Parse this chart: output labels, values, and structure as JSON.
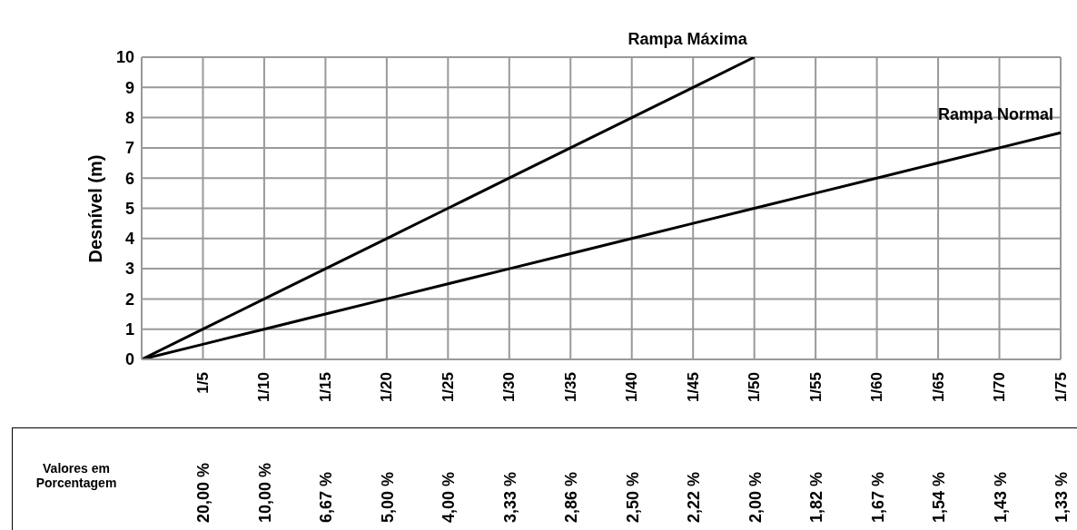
{
  "chart_data": {
    "type": "line",
    "ylabel": "Desnível (m)",
    "categories": [
      null,
      "1/5",
      "1/10",
      "1/15",
      "1/20",
      "1/25",
      "1/30",
      "1/35",
      "1/40",
      "1/45",
      "1/50",
      "1/55",
      "1/60",
      "1/65",
      "1/70",
      "1/75"
    ],
    "series": [
      {
        "name": "Rampa Máxima",
        "color": "#000000",
        "values": [
          0,
          1,
          2,
          3,
          4,
          5,
          6,
          7,
          8,
          9,
          10,
          null,
          null,
          null,
          null,
          null
        ]
      },
      {
        "name": "Rampa Normal",
        "color": "#000000",
        "values": [
          0,
          0.5,
          1,
          1.5,
          2,
          2.5,
          3,
          3.5,
          4,
          4.5,
          5,
          5.5,
          6,
          6.5,
          7,
          7.5
        ]
      }
    ],
    "ylim": [
      0,
      10
    ],
    "yticks": [
      0,
      1,
      2,
      3,
      4,
      5,
      6,
      7,
      8,
      9,
      10
    ],
    "grid": true,
    "legend": false,
    "marker": "none",
    "line_style": "solid",
    "annotations": [
      "Valores em Porcentagem",
      "20,00 %",
      "10,00 %",
      "6,67 %",
      "5,00 %",
      "4,00 %",
      "3,33 %",
      "2,86 %",
      "2,50 %",
      "2,22 %",
      "2,00 %",
      "1,82 %",
      "1,67 %",
      "1,54 %",
      "1,43 %",
      "1,33 %"
    ]
  }
}
